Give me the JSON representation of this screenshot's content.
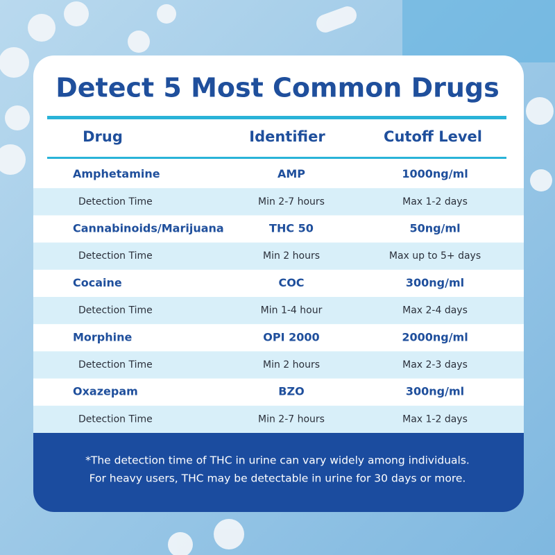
{
  "title": "Detect 5 Most Common Drugs",
  "table": {
    "headers": [
      "Drug",
      "Identifier",
      "Cutoff Level"
    ],
    "rows": [
      [
        "Amphetamine",
        "AMP",
        "1000ng/ml"
      ],
      [
        "Detection Time",
        "Min 2-7 hours",
        "Max 1-2 days"
      ],
      [
        "Cannabinoids/Marijuana",
        "THC 50",
        "50ng/ml"
      ],
      [
        "Detection Time",
        "Min 2 hours",
        "Max up to 5+ days"
      ],
      [
        "Cocaine",
        "COC",
        "300ng/ml"
      ],
      [
        "Detection Time",
        "Min 1-4 hour",
        "Max 2-4 days"
      ],
      [
        "Morphine",
        "OPI 2000",
        "2000ng/ml"
      ],
      [
        "Detection Time",
        "Min 2 hours",
        "Max 2-3 days"
      ],
      [
        "Oxazepam",
        "BZO",
        "300ng/ml"
      ],
      [
        "Detection Time",
        "Min 2-7 hours",
        "Max 1-2 days"
      ]
    ]
  },
  "footer": {
    "lines": [
      "*The detection time of THC in urine can vary widely among individuals.",
      "For heavy users, THC may be detectable in urine for 30 days or more."
    ]
  }
}
